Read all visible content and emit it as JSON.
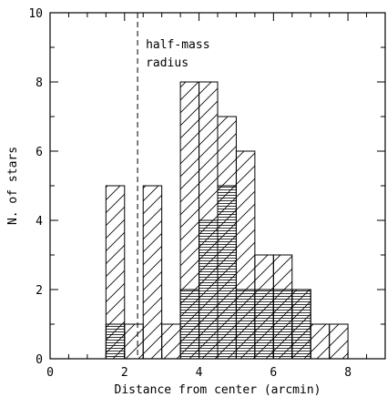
{
  "chart_data": {
    "type": "bar",
    "subtype": "histogram",
    "xlabel": "Distance from center (arcmin)",
    "ylabel": "N. of stars",
    "xlim": [
      0,
      9
    ],
    "ylim": [
      0,
      10
    ],
    "x_ticks": [
      0,
      2,
      4,
      6,
      8
    ],
    "y_ticks": [
      0,
      2,
      4,
      6,
      8,
      10
    ],
    "x_minor_step": 0.5,
    "y_minor_step": 1,
    "grid": false,
    "annotation": {
      "line1": "half-mass",
      "line2": "radius",
      "x": 2.35,
      "style": "dashed vertical line"
    },
    "series": [
      {
        "hatch": "diagonal",
        "bins": [
          {
            "x0": 1.5,
            "x1": 2.0,
            "value": 5
          },
          {
            "x0": 2.0,
            "x1": 2.5,
            "value": 1
          },
          {
            "x0": 2.5,
            "x1": 3.0,
            "value": 5
          },
          {
            "x0": 3.0,
            "x1": 3.5,
            "value": 1
          },
          {
            "x0": 3.5,
            "x1": 4.0,
            "value": 8
          },
          {
            "x0": 4.0,
            "x1": 4.5,
            "value": 8
          },
          {
            "x0": 4.5,
            "x1": 5.0,
            "value": 7
          },
          {
            "x0": 5.0,
            "x1": 5.5,
            "value": 6
          },
          {
            "x0": 5.5,
            "x1": 6.0,
            "value": 3
          },
          {
            "x0": 6.0,
            "x1": 6.5,
            "value": 3
          },
          {
            "x0": 6.5,
            "x1": 7.0,
            "value": 2
          },
          {
            "x0": 7.0,
            "x1": 7.5,
            "value": 1
          },
          {
            "x0": 7.5,
            "x1": 8.0,
            "value": 1
          }
        ]
      },
      {
        "hatch": "horizontal",
        "bins": [
          {
            "x0": 1.5,
            "x1": 2.0,
            "value": 1
          },
          {
            "x0": 3.5,
            "x1": 4.0,
            "value": 2
          },
          {
            "x0": 4.0,
            "x1": 4.5,
            "value": 4
          },
          {
            "x0": 4.5,
            "x1": 5.0,
            "value": 5
          },
          {
            "x0": 5.0,
            "x1": 5.5,
            "value": 2
          },
          {
            "x0": 5.5,
            "x1": 6.0,
            "value": 2
          },
          {
            "x0": 6.0,
            "x1": 6.5,
            "value": 2
          },
          {
            "x0": 6.5,
            "x1": 7.0,
            "value": 2
          }
        ]
      }
    ]
  }
}
